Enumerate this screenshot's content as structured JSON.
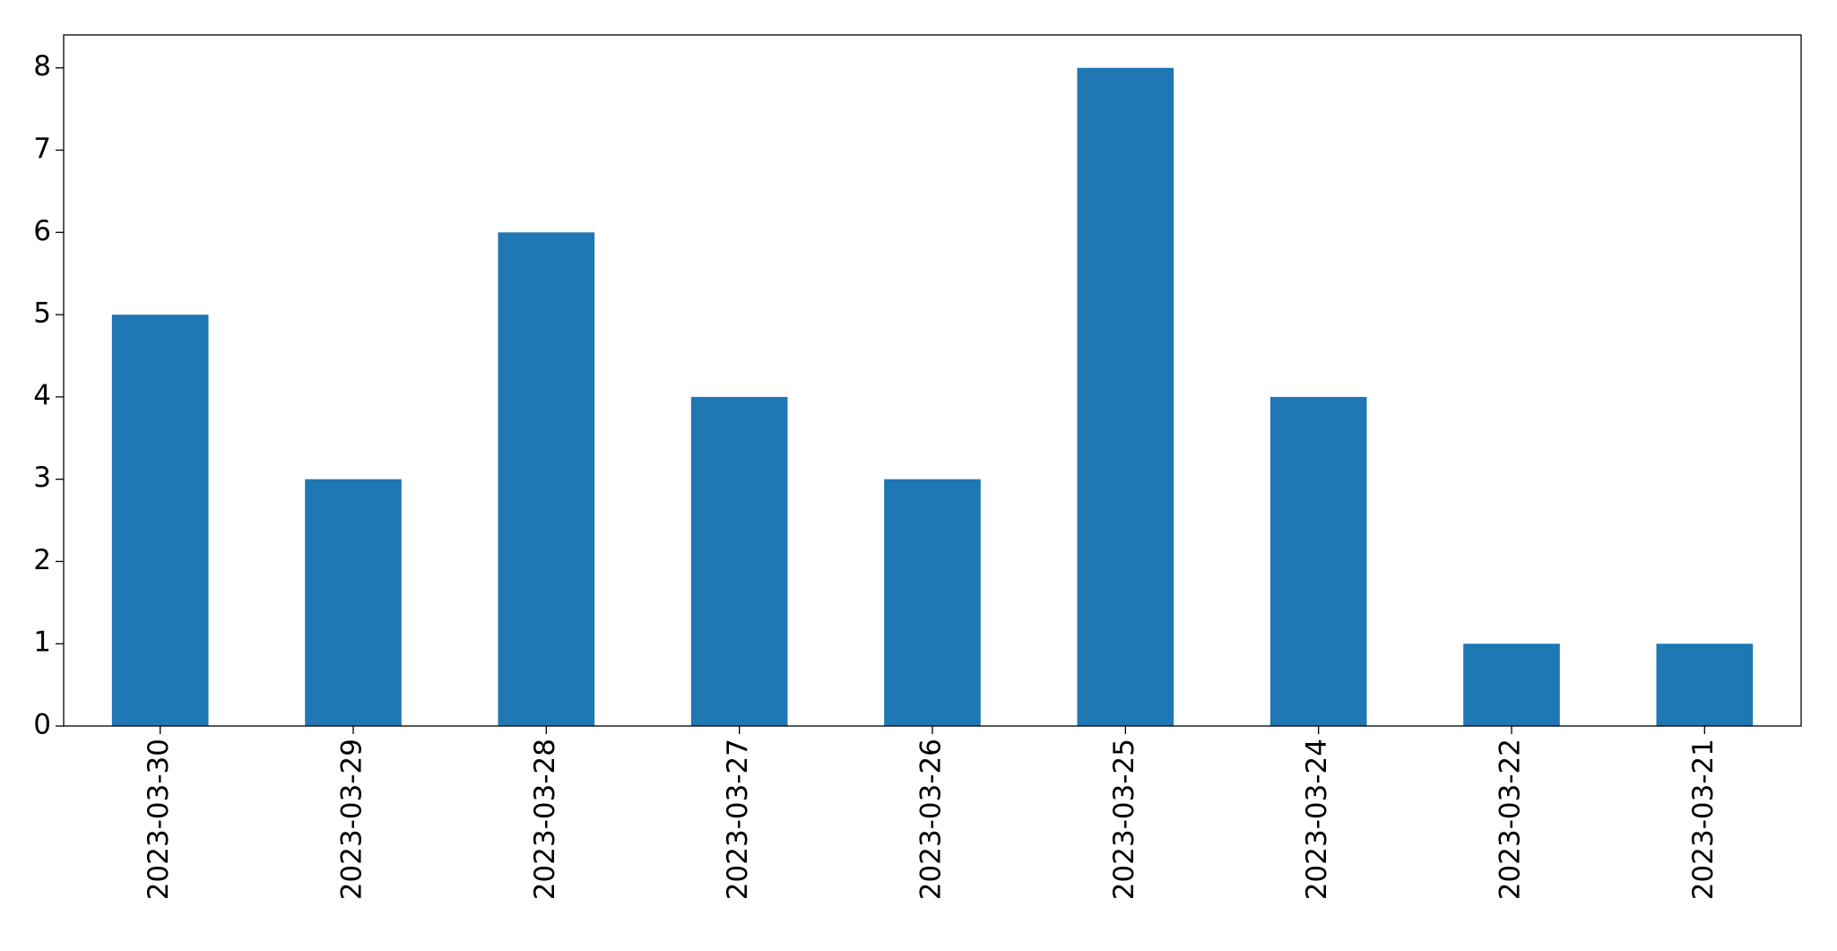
{
  "chart_data": {
    "type": "bar",
    "categories": [
      "2023-03-30",
      "2023-03-29",
      "2023-03-28",
      "2023-03-27",
      "2023-03-26",
      "2023-03-25",
      "2023-03-24",
      "2023-03-22",
      "2023-03-21"
    ],
    "values": [
      5,
      3,
      6,
      4,
      3,
      8,
      4,
      1,
      1
    ],
    "color": "#1f77b4",
    "ylim": [
      0,
      8.4
    ],
    "yticks": [
      0,
      1,
      2,
      3,
      4,
      5,
      6,
      7,
      8
    ],
    "grid": false
  }
}
